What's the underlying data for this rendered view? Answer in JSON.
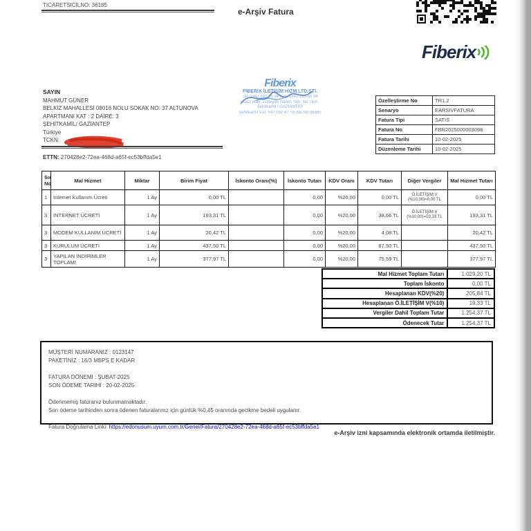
{
  "header": {
    "registry_no": "TICARETSICILNO: 36185",
    "title": "e-Arşiv Fatura"
  },
  "brand": {
    "name": "Fiberix"
  },
  "stamp": {
    "brand": "Fiberix",
    "company": "FİBERİX İLETİŞİM HİZM.LTD.ŞTİ.",
    "line1": "Tel: 0342 215 16 94 Fax: 0342 215 16 94",
    "line2": "Gazi Mah. Zübeyde Hanım Sok. No:74/A",
    "line3": "Şehitkamil / GAZİANTEP",
    "line4": "Şehitkamil V.D. 547 032 47 Tic.Sic.No 36185"
  },
  "recipient": {
    "salutation": "SAYIN",
    "name": "MAHMUT GÜNER",
    "address1": "BELKIZ MAHALLESİ 08016 NOLU SOKAK NO: 37 ALTUNOVA",
    "address2": "APARTMANI KAT : 2 DAİRE: 3",
    "city": "ŞEHİTKAMİL/ GAZİANTEP",
    "country": "Türkiye",
    "tckn_label": "TCKN:"
  },
  "ettn": {
    "label": "ETTN:",
    "value": "270428e2-72ea-468d-a65f-ec53bffda5e1"
  },
  "invoice_info": {
    "rows": [
      {
        "label": "Özelleştirme No",
        "value": "TR1.2"
      },
      {
        "label": "Senaryo",
        "value": "EARSIVFATURA"
      },
      {
        "label": "Fatura Tipi",
        "value": "SATIS"
      },
      {
        "label": "Fatura No",
        "value": "FBR2025000003098"
      },
      {
        "label": "Fatura Tarihi",
        "value": "10-02-2025"
      },
      {
        "label": "Düzenleme Tarihi",
        "value": "10-02-2025"
      }
    ]
  },
  "items": {
    "headers": [
      "Sıra No",
      "Mal Hizmet",
      "Miktar",
      "Birim Fiyat",
      "İskonto Oranı(%)",
      "İskonto Tutarı",
      "KDV Oranı",
      "KDV Tutarı",
      "Diğer Vergiler",
      "Mal Hizmet Tutarı"
    ],
    "rows": [
      {
        "cells": [
          "1",
          "İnternet Kullanım Ücreti",
          "1 Ay",
          "0,00 TL",
          "",
          "0,00",
          "%20,00",
          "0,00 TL",
          "Ö.İLETİŞİM V (%10,00)=0,00 TL",
          "0,00 TL"
        ]
      },
      {
        "cells": [
          "3",
          "İNTERNET ÜCRETİ",
          "1 Ay",
          "193,31 TL",
          "",
          "0,00",
          "%20,00",
          "38,66 TL",
          "Ö.İLETİŞİM V (%10,00)=19,33 TL",
          "193,31 TL"
        ]
      },
      {
        "cells": [
          "3",
          "MODEM KULLANIM ÜCRETİ",
          "1 Ay",
          "20,42 TL",
          "",
          "0,00",
          "%20,00",
          "4,08 TL",
          "",
          "20,42 TL"
        ]
      },
      {
        "cells": [
          "3",
          "KURULUM ÜCRETİ",
          "1 Ay",
          "437,50 TL",
          "",
          "0,00",
          "%20,00",
          "87,50 TL",
          "",
          "437,50 TL"
        ]
      },
      {
        "cells": [
          "3",
          "YAPILAN İNDİRİMLER TOPLAMI",
          "1 Ay",
          "377,97 TL",
          "",
          "0,00",
          "%20,00",
          "75,59 TL",
          "",
          "377,97 TL"
        ]
      }
    ]
  },
  "totals": {
    "rows": [
      {
        "label": "Mal Hizmet Toplam Tutarı",
        "value": "1.029,20 TL"
      },
      {
        "label": "Toplam İskonto",
        "value": "0,00 TL"
      },
      {
        "label": "Hesaplanan KDV(%20)",
        "value": "205,84 TL"
      },
      {
        "label": "Hesaplanan Ö.İLETİŞİM V(%10)",
        "value": "19,33 TL"
      },
      {
        "label": "Vergiler Dahil Toplam Tutar",
        "value": "1.254,37 TL"
      },
      {
        "label": "Ödenecek Tutar",
        "value": "1.254,37 TL"
      }
    ]
  },
  "notes": {
    "customer_no": "MÜŞTERİ NUMARANIZ : 0123147",
    "package": "PAKETİNİZ : 16/3 MBPS E KADAR",
    "period": "FATURA DÖNEMİ : ŞUBAT-2025",
    "due_date": "SON ÖDEME TARİHİ : 20-02-2025",
    "info1": "Ödenmemiş faturanız bulunmamaktadır.",
    "info2": "Son ödeme tarihinden sonra ödenen faturalarınız için günlük %0,45 oranında gecikme bedeli uygulanır.",
    "link_label": "Fatura Doğrulama Linki:",
    "link": "https://edonusum.uyum.com.tr/Genel/Fatura/270428e2-72ea-468d-a65f-ec53bffda5e1"
  },
  "footer": {
    "text": "e-Arşiv izni kapsamında elektronik ortamda iletilmiştir."
  },
  "colors": {
    "stamp_blue": "#4a86d8",
    "brand_navy": "#1d2b4f",
    "brand_green": "#55b42e",
    "link_blue": "#0b0bcd",
    "scribble_red": "#e03120"
  }
}
